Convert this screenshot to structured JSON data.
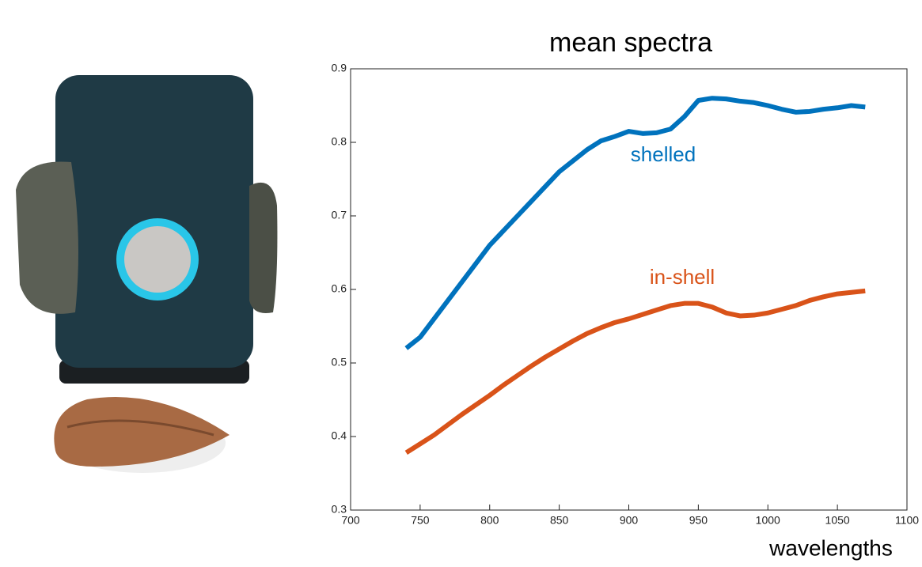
{
  "chart_data": {
    "type": "line",
    "title": "mean spectra",
    "x_label": "wavelengths",
    "x": [
      740,
      750,
      760,
      770,
      780,
      790,
      800,
      810,
      820,
      830,
      840,
      850,
      860,
      870,
      880,
      890,
      900,
      910,
      920,
      930,
      940,
      950,
      960,
      970,
      980,
      990,
      1000,
      1010,
      1020,
      1030,
      1040,
      1050,
      1060,
      1070
    ],
    "series": [
      {
        "name": "shelled",
        "color": "#0072bd",
        "values": [
          0.52,
          0.535,
          0.56,
          0.585,
          0.61,
          0.635,
          0.66,
          0.68,
          0.7,
          0.72,
          0.74,
          0.76,
          0.775,
          0.79,
          0.802,
          0.808,
          0.815,
          0.812,
          0.813,
          0.818,
          0.835,
          0.857,
          0.86,
          0.859,
          0.856,
          0.854,
          0.85,
          0.845,
          0.841,
          0.842,
          0.845,
          0.847,
          0.85,
          0.848
        ]
      },
      {
        "name": "in-shell",
        "color": "#d95319",
        "values": [
          0.378,
          0.39,
          0.402,
          0.416,
          0.43,
          0.443,
          0.456,
          0.47,
          0.483,
          0.496,
          0.508,
          0.519,
          0.53,
          0.54,
          0.548,
          0.555,
          0.56,
          0.566,
          0.572,
          0.578,
          0.581,
          0.581,
          0.576,
          0.568,
          0.564,
          0.565,
          0.568,
          0.573,
          0.578,
          0.585,
          0.59,
          0.594,
          0.596,
          0.598
        ]
      }
    ],
    "xlim": [
      700,
      1100
    ],
    "xticks": [
      700,
      750,
      800,
      850,
      900,
      950,
      1000,
      1050,
      1100
    ],
    "ylim": [
      0.3,
      0.9
    ],
    "yticks": [
      0.3,
      0.4,
      0.5,
      0.6,
      0.7,
      0.8,
      0.9
    ],
    "grid": false
  }
}
